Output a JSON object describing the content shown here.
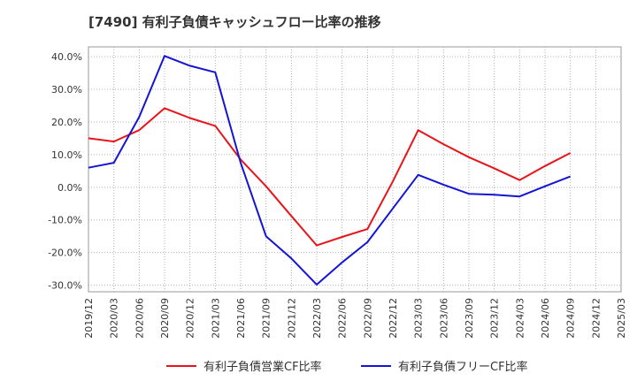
{
  "chart_data": {
    "type": "line",
    "title": "[7490]  有利子負債キャッシュフロー比率の推移",
    "x": [
      "2019/12",
      "2020/03",
      "2020/06",
      "2020/09",
      "2020/12",
      "2021/03",
      "2021/06",
      "2021/09",
      "2021/12",
      "2022/03",
      "2022/06",
      "2022/09",
      "2022/12",
      "2023/03",
      "2023/06",
      "2023/09",
      "2023/12",
      "2024/03",
      "2024/06",
      "2024/09",
      "2024/12",
      "2025/03"
    ],
    "ylim": [
      -32,
      43
    ],
    "yticks": [
      -30,
      -20,
      -10,
      0,
      10,
      20,
      30,
      40
    ],
    "ytick_labels": [
      "-30.0%",
      "-20.0%",
      "-10.0%",
      "0.0%",
      "10.0%",
      "20.0%",
      "30.0%",
      "40.0%"
    ],
    "grid": true,
    "legend_position": "bottom",
    "series": [
      {
        "name": "有利子負債営業CF比率",
        "color": "#e8141b",
        "values": [
          15.0,
          14.0,
          17.5,
          24.2,
          21.2,
          18.8,
          8.5,
          0.3,
          -8.8,
          -17.8,
          -15.2,
          -12.8,
          1.8,
          17.5,
          13.2,
          9.2,
          5.8,
          2.2,
          6.5,
          10.5,
          null,
          null
        ]
      },
      {
        "name": "有利子負債フリーCF比率",
        "color": "#1414d4",
        "values": [
          6.0,
          7.5,
          21.5,
          40.2,
          37.2,
          35.2,
          7.5,
          -15.0,
          -21.8,
          -29.8,
          -23.0,
          -16.8,
          -6.5,
          3.8,
          0.8,
          -2.0,
          -2.3,
          -2.8,
          0.3,
          3.3,
          null,
          null
        ]
      }
    ]
  },
  "colors": {
    "grid": "#b0b0b0",
    "axis": "#333333",
    "plot_border": "#999999"
  }
}
